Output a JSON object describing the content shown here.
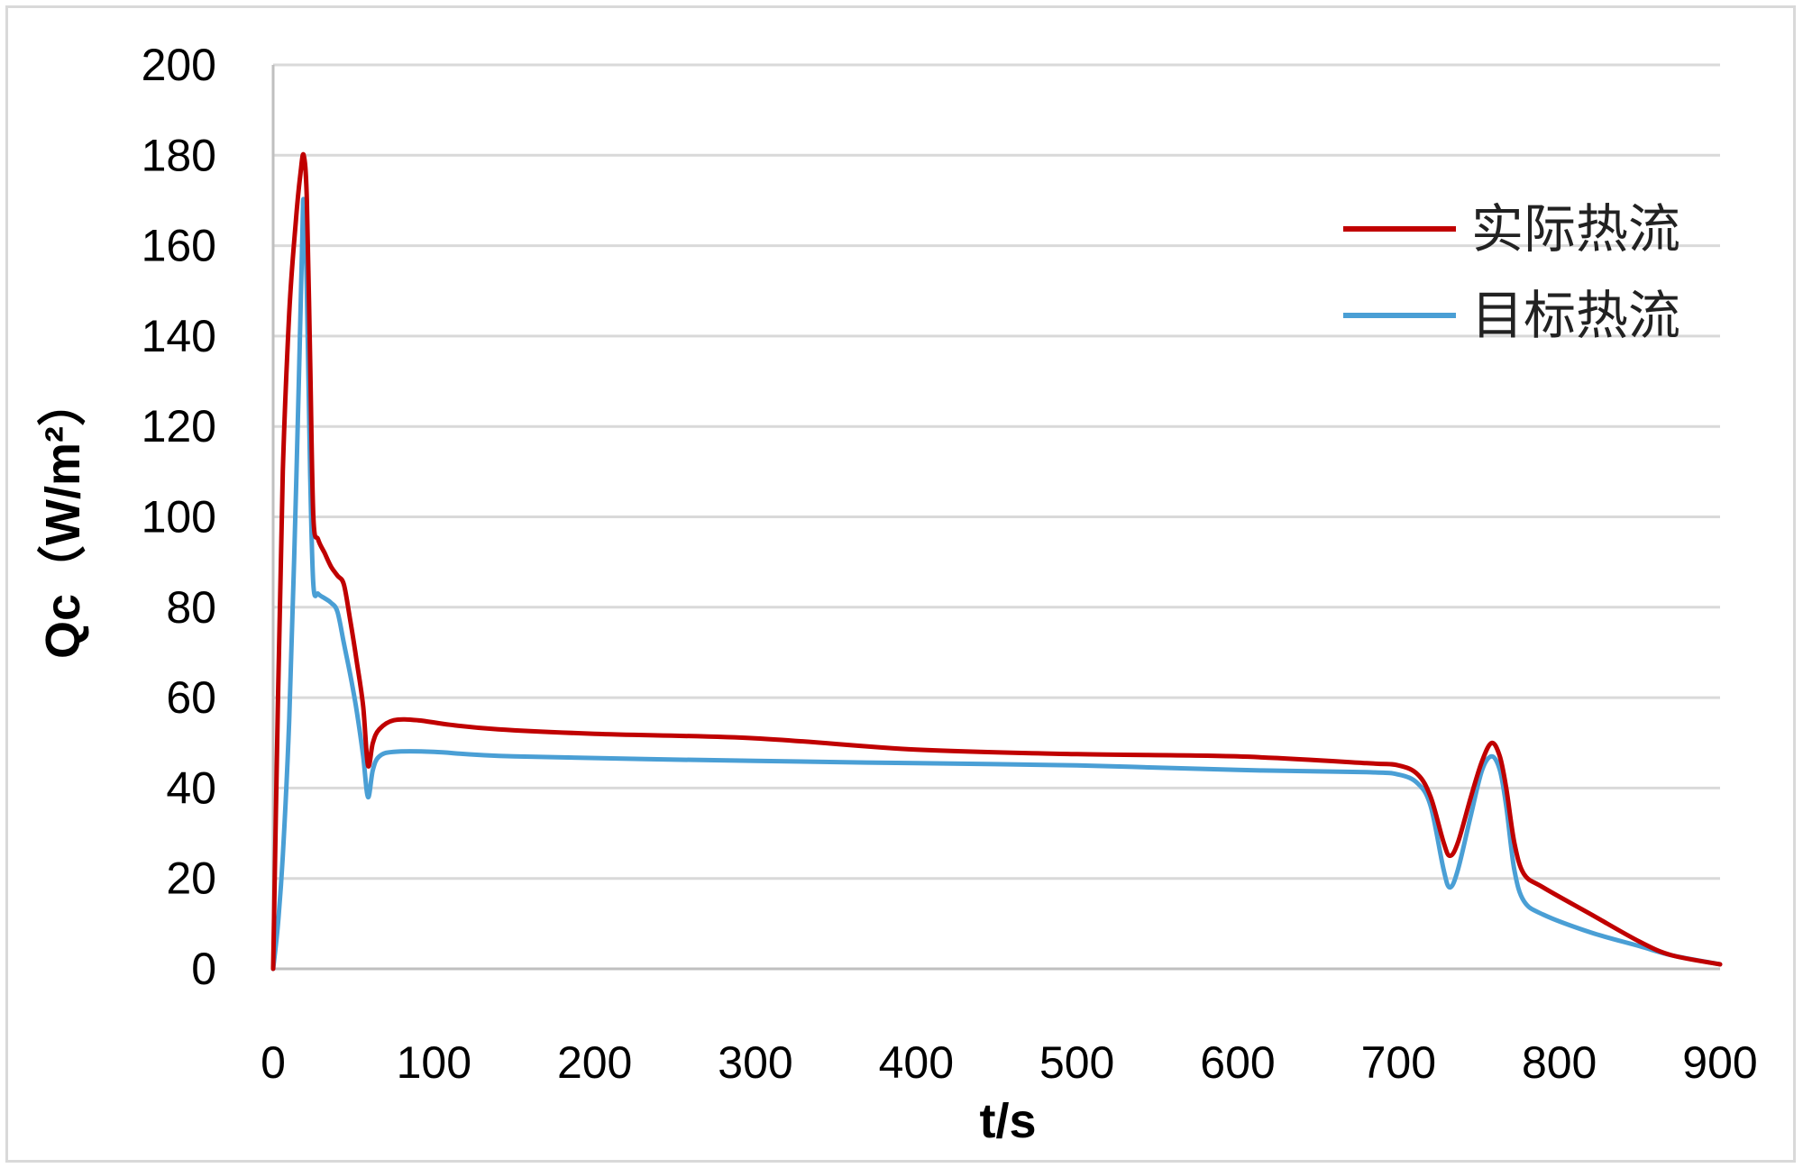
{
  "chart_data": {
    "type": "line",
    "xlabel": "t/s",
    "ylabel": "Qc（W/m²）",
    "xlim": [
      0,
      900
    ],
    "ylim": [
      0,
      200
    ],
    "xticks": [
      "0",
      "100",
      "200",
      "300",
      "400",
      "500",
      "600",
      "700",
      "800",
      "900"
    ],
    "yticks": [
      "0",
      "20",
      "40",
      "60",
      "80",
      "100",
      "120",
      "140",
      "160",
      "180",
      "200"
    ],
    "grid": "horizontal",
    "legend_position": "top-right",
    "series": [
      {
        "name": "实际热流",
        "color": "#c00000",
        "points": [
          [
            0,
            0
          ],
          [
            3,
            60
          ],
          [
            6,
            110
          ],
          [
            10,
            145
          ],
          [
            14,
            165
          ],
          [
            17,
            176
          ],
          [
            19,
            180
          ],
          [
            21,
            170
          ],
          [
            23,
            135
          ],
          [
            25,
            100
          ],
          [
            28,
            95
          ],
          [
            32,
            92
          ],
          [
            36,
            89
          ],
          [
            40,
            87
          ],
          [
            44,
            85
          ],
          [
            48,
            77
          ],
          [
            52,
            68
          ],
          [
            56,
            58
          ],
          [
            59,
            45
          ],
          [
            62,
            50
          ],
          [
            66,
            53
          ],
          [
            75,
            55
          ],
          [
            90,
            55
          ],
          [
            110,
            54
          ],
          [
            140,
            53
          ],
          [
            200,
            52
          ],
          [
            300,
            51
          ],
          [
            400,
            48.5
          ],
          [
            500,
            47.5
          ],
          [
            600,
            47
          ],
          [
            680,
            45.5
          ],
          [
            700,
            45
          ],
          [
            712,
            43
          ],
          [
            720,
            38
          ],
          [
            728,
            28
          ],
          [
            732,
            25
          ],
          [
            737,
            28
          ],
          [
            745,
            38
          ],
          [
            752,
            46
          ],
          [
            758,
            50
          ],
          [
            763,
            47
          ],
          [
            767,
            40
          ],
          [
            772,
            28
          ],
          [
            778,
            21
          ],
          [
            790,
            18
          ],
          [
            820,
            12
          ],
          [
            850,
            6
          ],
          [
            870,
            3
          ],
          [
            900,
            1
          ]
        ]
      },
      {
        "name": "目标热流",
        "color": "#4a9fd5",
        "points": [
          [
            0,
            0
          ],
          [
            3,
            10
          ],
          [
            6,
            25
          ],
          [
            10,
            55
          ],
          [
            13,
            90
          ],
          [
            16,
            130
          ],
          [
            18,
            160
          ],
          [
            19,
            170
          ],
          [
            21,
            150
          ],
          [
            23,
            110
          ],
          [
            25,
            85
          ],
          [
            28,
            83
          ],
          [
            32,
            82
          ],
          [
            36,
            81
          ],
          [
            40,
            79
          ],
          [
            44,
            72
          ],
          [
            48,
            65
          ],
          [
            52,
            57
          ],
          [
            56,
            47
          ],
          [
            59,
            38
          ],
          [
            62,
            44
          ],
          [
            66,
            47
          ],
          [
            75,
            48
          ],
          [
            100,
            48
          ],
          [
            150,
            47
          ],
          [
            300,
            46
          ],
          [
            400,
            45.5
          ],
          [
            500,
            45
          ],
          [
            600,
            44
          ],
          [
            680,
            43.5
          ],
          [
            700,
            43
          ],
          [
            712,
            41
          ],
          [
            720,
            36
          ],
          [
            728,
            22
          ],
          [
            732,
            18
          ],
          [
            737,
            22
          ],
          [
            745,
            34
          ],
          [
            752,
            44
          ],
          [
            758,
            47
          ],
          [
            763,
            44
          ],
          [
            767,
            36
          ],
          [
            772,
            22
          ],
          [
            778,
            15
          ],
          [
            790,
            12
          ],
          [
            820,
            8
          ],
          [
            850,
            5
          ],
          [
            870,
            3
          ],
          [
            900,
            1
          ]
        ]
      }
    ]
  }
}
